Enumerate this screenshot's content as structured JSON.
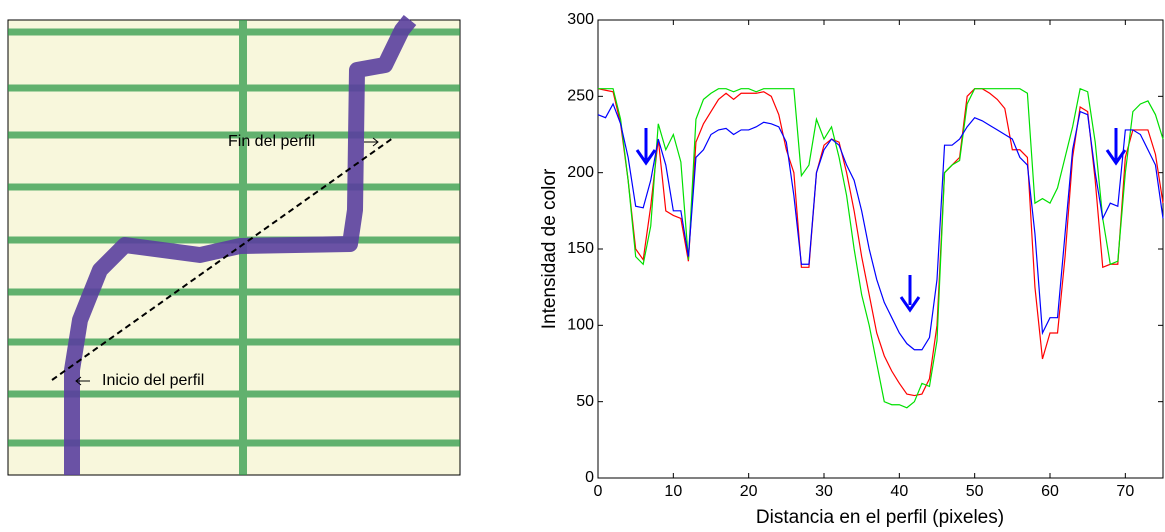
{
  "annotations": {
    "end": "Fin del perfil",
    "start": "Inicio del perfil"
  },
  "chart_data": {
    "type": "line",
    "xlabel": "Distancia en el perfil (pixeles)",
    "ylabel": "Intensidad de color",
    "x": [
      0,
      1,
      2,
      3,
      4,
      5,
      6,
      7,
      8,
      9,
      10,
      11,
      12,
      13,
      14,
      15,
      16,
      17,
      18,
      19,
      20,
      21,
      22,
      23,
      24,
      25,
      26,
      27,
      28,
      29,
      30,
      31,
      32,
      33,
      34,
      35,
      36,
      37,
      38,
      39,
      40,
      41,
      42,
      43,
      44,
      45,
      46,
      47,
      48,
      49,
      50,
      51,
      52,
      53,
      54,
      55,
      56,
      57,
      58,
      59,
      60,
      61,
      62,
      63,
      64,
      65,
      66,
      67,
      68,
      69,
      70,
      71,
      72,
      73,
      74,
      75
    ],
    "series": [
      {
        "color": "#ff0000",
        "values": [
          255,
          254,
          253,
          232,
          195,
          150,
          143,
          178,
          222,
          175,
          172,
          170,
          142,
          220,
          232,
          240,
          248,
          252,
          248,
          252,
          252,
          252,
          253,
          250,
          238,
          215,
          200,
          138,
          138,
          200,
          218,
          222,
          220,
          200,
          175,
          145,
          120,
          95,
          80,
          70,
          62,
          55,
          54,
          55,
          65,
          100,
          200,
          205,
          210,
          250,
          255,
          255,
          252,
          248,
          242,
          215,
          215,
          210,
          125,
          78,
          95,
          95,
          145,
          210,
          243,
          240,
          195,
          138,
          140,
          140,
          210,
          228,
          228,
          228,
          212,
          180
        ]
      },
      {
        "color": "#00e000",
        "values": [
          255,
          255,
          255,
          235,
          195,
          145,
          140,
          165,
          232,
          215,
          225,
          207,
          143,
          235,
          248,
          252,
          255,
          255,
          253,
          255,
          255,
          253,
          255,
          255,
          255,
          255,
          255,
          198,
          205,
          235,
          222,
          230,
          210,
          185,
          150,
          120,
          100,
          75,
          50,
          48,
          48,
          46,
          50,
          62,
          60,
          90,
          200,
          205,
          208,
          245,
          255,
          255,
          255,
          255,
          255,
          255,
          255,
          252,
          180,
          183,
          180,
          190,
          210,
          230,
          255,
          253,
          220,
          170,
          140,
          142,
          200,
          240,
          245,
          247,
          238,
          222
        ]
      },
      {
        "color": "#0000ff",
        "values": [
          238,
          236,
          245,
          232,
          210,
          178,
          177,
          195,
          222,
          205,
          175,
          175,
          145,
          210,
          215,
          225,
          228,
          229,
          225,
          228,
          228,
          230,
          233,
          232,
          230,
          220,
          185,
          140,
          140,
          200,
          215,
          222,
          218,
          205,
          195,
          175,
          150,
          130,
          115,
          105,
          95,
          88,
          84,
          84,
          92,
          130,
          218,
          218,
          222,
          230,
          236,
          234,
          231,
          228,
          225,
          222,
          210,
          205,
          160,
          95,
          105,
          105,
          160,
          215,
          240,
          238,
          200,
          170,
          180,
          178,
          228,
          228,
          225,
          215,
          205,
          170
        ]
      }
    ],
    "xlim": [
      0,
      75
    ],
    "xticks": [
      0,
      10,
      20,
      30,
      40,
      50,
      60,
      70
    ],
    "ylim": [
      0,
      300
    ],
    "yticks": [
      0,
      50,
      100,
      150,
      200,
      250,
      300
    ]
  }
}
